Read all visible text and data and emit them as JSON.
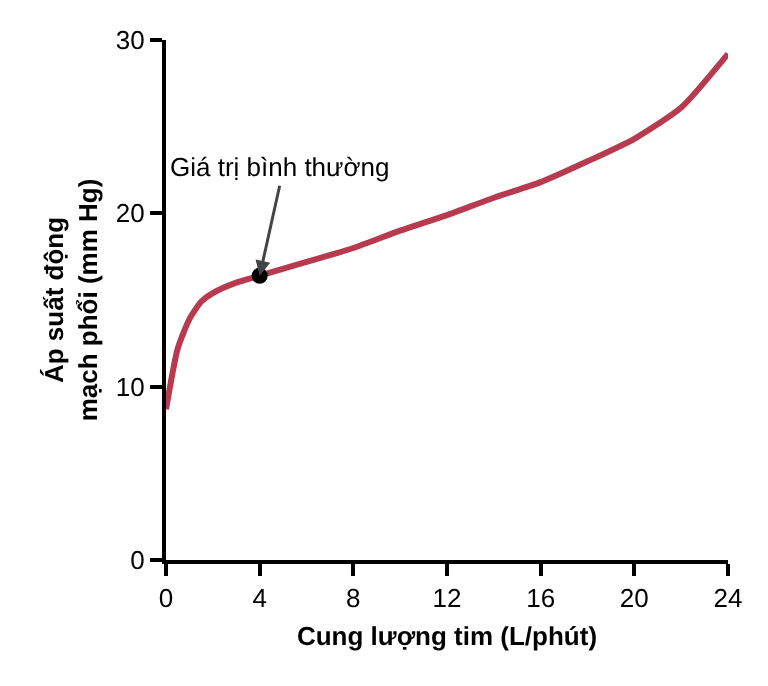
{
  "chart_data": {
    "type": "line",
    "xlabel": "Cung lượng tim (L/phút)",
    "ylabel": "Áp suất động\nmạch phổi (mm Hg)",
    "x": [
      0,
      0.5,
      1,
      1.5,
      2,
      3,
      4,
      6,
      8,
      10,
      12,
      14,
      16,
      18,
      20,
      22,
      24
    ],
    "series": [
      {
        "color": "#b73a4e",
        "values": [
          8.7,
          12.2,
          13.9,
          14.9,
          15.4,
          16.0,
          16.4,
          17.2,
          18.0,
          19.0,
          19.9,
          20.9,
          21.8,
          23.0,
          24.3,
          26.1,
          29.2
        ]
      },
      {
        "type": "scatter",
        "color": "#000000",
        "x": [
          4
        ],
        "values": [
          16.4
        ],
        "marker": "circle"
      }
    ],
    "annotations": [
      {
        "text": "Giá trị bình thường",
        "x": 4,
        "y": 16.4
      }
    ],
    "xlim": [
      0,
      24
    ],
    "xticks": [
      0,
      4,
      8,
      12,
      16,
      20,
      24
    ],
    "ylim": [
      0,
      30
    ],
    "yticks": [
      0,
      10,
      20,
      30
    ],
    "grid": false,
    "marker": "none",
    "line_style": "solid"
  }
}
